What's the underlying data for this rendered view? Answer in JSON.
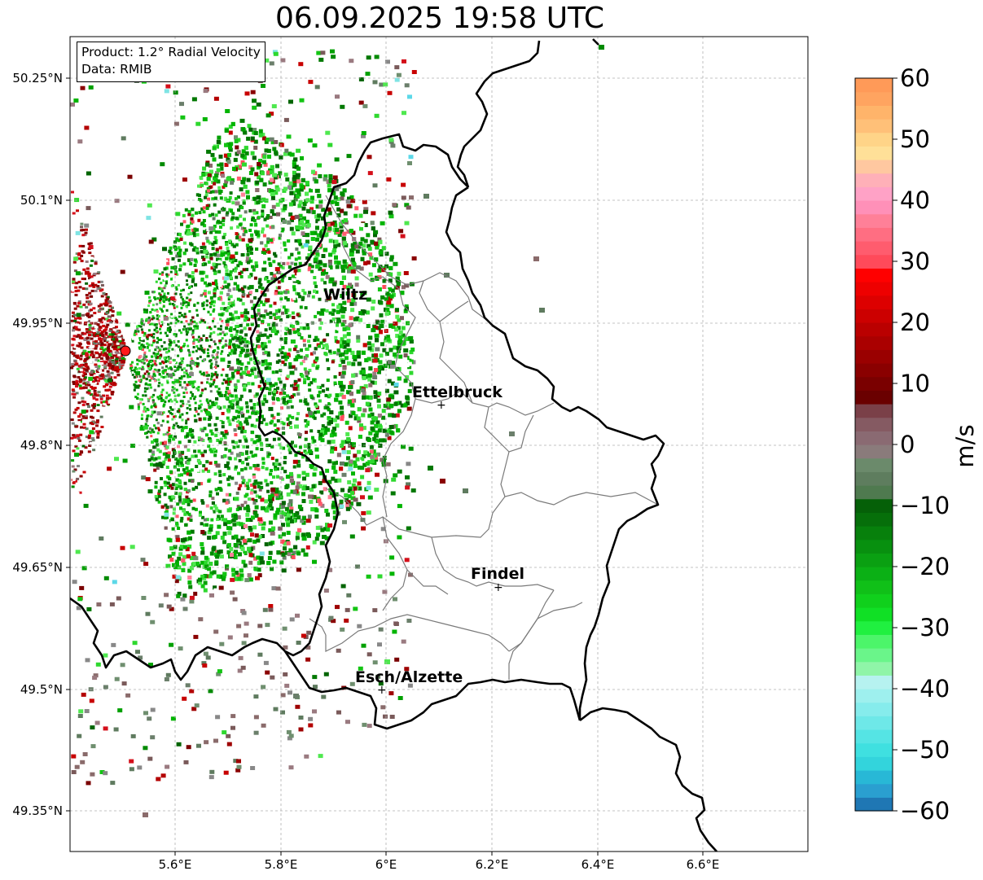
{
  "title": "06.09.2025 19:58 UTC",
  "info": {
    "product_line": "Product: 1.2° Radial Velocity",
    "data_line": "Data: RMIB"
  },
  "axes": {
    "lon_ticks": [
      "5.6°E",
      "5.8°E",
      "6°E",
      "6.2°E",
      "6.4°E",
      "6.6°E"
    ],
    "lat_ticks": [
      "50.25°N",
      "50.1°N",
      "49.95°N",
      "49.8°N",
      "49.65°N",
      "49.5°N",
      "49.35°N"
    ],
    "lon_range": [
      5.4,
      6.8
    ],
    "lat_range": [
      49.3,
      50.3
    ],
    "grid": true
  },
  "cities": [
    {
      "name": "Wiltz",
      "lon": 5.93,
      "lat": 49.966,
      "marker": false
    },
    {
      "name": "Ettelbruck",
      "lon": 6.1,
      "lat": 49.85,
      "marker": true
    },
    {
      "name": "Findel",
      "lon": 6.21,
      "lat": 49.627,
      "marker": true
    },
    {
      "name": "Esch/Alzette",
      "lon": 5.99,
      "lat": 49.5,
      "marker": true
    }
  ],
  "radar_site": {
    "lon": 5.506,
    "lat": 49.914,
    "color": "#ff1a1a"
  },
  "colorbar": {
    "label": "m/s",
    "ticks": [
      "60",
      "50",
      "40",
      "30",
      "20",
      "10",
      "0",
      "−10",
      "−20",
      "−30",
      "−40",
      "−50",
      "−60"
    ],
    "min": -60,
    "max": 60,
    "colors": [
      "#1f77b4",
      "#2a9fd0",
      "#28b8d6",
      "#33d4dc",
      "#3fe0e0",
      "#55e4e4",
      "#6ee8e8",
      "#86ecec",
      "#9ef0ee",
      "#b6f2f0",
      "#8ff5a8",
      "#6af58a",
      "#4cf56a",
      "#20f040",
      "#10e025",
      "#10d01c",
      "#10c018",
      "#0bb015",
      "#0aa012",
      "#08900f",
      "#07800c",
      "#066f0a",
      "#056008",
      "#4f7a4f",
      "#5e7d5e",
      "#6b8a6b",
      "#8a7b7b",
      "#8a6a72",
      "#855a62",
      "#7a4048",
      "#6a0000",
      "#7a0000",
      "#8a0000",
      "#9a0000",
      "#aa0000",
      "#ba0000",
      "#cc0000",
      "#dd0000",
      "#ee0000",
      "#ff0000",
      "#ff4a5a",
      "#ff5c6e",
      "#ff6e82",
      "#ff8098",
      "#ff90b8",
      "#ffa2c6",
      "#ffb0b8",
      "#ffc8a0",
      "#ffe098",
      "#ffd488",
      "#ffc078",
      "#ffb46a",
      "#ffa460",
      "#ff9a58"
    ],
    "legend_placement": "right"
  },
  "velocity_field": {
    "description_tokens": [
      "gray",
      "green",
      "red"
    ],
    "palette": {
      "red": [
        "#8a0000",
        "#9e0000",
        "#b40000",
        "#c80000",
        "#7a0000",
        "#d40f1a"
      ],
      "green": [
        "#007800",
        "#008a00",
        "#00a000",
        "#00b400",
        "#13c413",
        "#2ed82e",
        "#4fe84f",
        "#006400"
      ],
      "gray": [
        "#6b7f6b",
        "#5f7b5f",
        "#8a6b6b",
        "#7a5a5a",
        "#888888",
        "#6f8f6f",
        "#9a7a80"
      ],
      "pink": [
        "#ff5c6e",
        "#ff8098",
        "#ff4a5a"
      ],
      "cyan": [
        "#7fe4e4",
        "#5cd8e8"
      ],
      "orange": [
        "#ffc070"
      ]
    }
  }
}
